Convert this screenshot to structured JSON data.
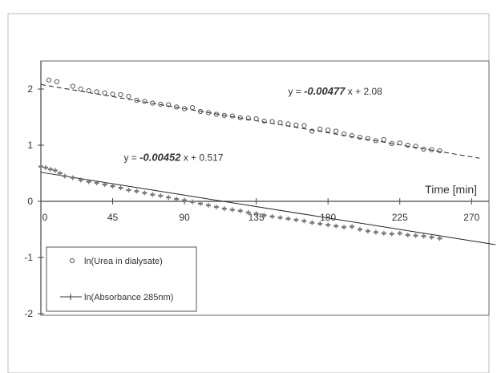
{
  "chart_data": {
    "type": "scatter",
    "xlabel": "Time [min]",
    "ylabel": "",
    "xlim": [
      0,
      280
    ],
    "ylim": [
      -2,
      2.5
    ],
    "x_ticks": [
      0,
      45,
      90,
      135,
      180,
      225,
      270
    ],
    "x_tick_labels": [
      "0",
      "45",
      "90",
      "135",
      "180",
      "225",
      "270"
    ],
    "y_ticks": [
      -2,
      -1,
      0,
      1,
      2
    ],
    "y_tick_labels": [
      "-2",
      "-1",
      "0",
      "1",
      "2"
    ],
    "grid": false,
    "legend_position": "bottom-left",
    "series": [
      {
        "name": "ln(Urea in dialysate)",
        "marker": "circle",
        "x": [
          5,
          10,
          20,
          25,
          30,
          35,
          40,
          45,
          50,
          55,
          60,
          65,
          70,
          75,
          80,
          85,
          90,
          95,
          100,
          105,
          110,
          115,
          120,
          125,
          130,
          135,
          140,
          145,
          150,
          155,
          160,
          165,
          170,
          175,
          180,
          185,
          190,
          195,
          200,
          205,
          210,
          215,
          220,
          225,
          230,
          235,
          240,
          245,
          250
        ],
        "y": [
          2.16,
          2.13,
          2.05,
          2.0,
          1.97,
          1.95,
          1.93,
          1.91,
          1.9,
          1.87,
          1.8,
          1.78,
          1.75,
          1.73,
          1.72,
          1.68,
          1.65,
          1.67,
          1.6,
          1.58,
          1.55,
          1.53,
          1.52,
          1.49,
          1.48,
          1.47,
          1.43,
          1.42,
          1.4,
          1.38,
          1.36,
          1.35,
          1.25,
          1.29,
          1.27,
          1.25,
          1.2,
          1.17,
          1.14,
          1.12,
          1.08,
          1.1,
          1.03,
          1.04,
          1.0,
          0.98,
          0.93,
          0.92,
          0.9
        ],
        "fit": {
          "slope": -0.00477,
          "intercept": 2.08,
          "x_range": [
            0,
            275
          ]
        }
      },
      {
        "name": "ln(Absorbance 285nm)",
        "marker": "plus",
        "x": [
          0,
          3,
          6,
          9,
          12,
          15,
          20,
          25,
          30,
          35,
          40,
          45,
          50,
          55,
          60,
          65,
          70,
          75,
          80,
          85,
          90,
          95,
          100,
          105,
          110,
          115,
          120,
          125,
          130,
          135,
          140,
          145,
          150,
          155,
          160,
          165,
          170,
          175,
          180,
          185,
          190,
          195,
          200,
          205,
          210,
          215,
          220,
          225,
          230,
          235,
          240,
          245,
          250
        ],
        "y": [
          0.62,
          0.6,
          0.57,
          0.55,
          0.5,
          0.45,
          0.42,
          0.38,
          0.35,
          0.33,
          0.3,
          0.27,
          0.24,
          0.2,
          0.18,
          0.15,
          0.12,
          0.1,
          0.07,
          0.04,
          0.02,
          -0.01,
          -0.04,
          -0.07,
          -0.1,
          -0.13,
          -0.15,
          -0.17,
          -0.2,
          -0.22,
          -0.25,
          -0.27,
          -0.29,
          -0.31,
          -0.33,
          -0.35,
          -0.38,
          -0.4,
          -0.42,
          -0.44,
          -0.46,
          -0.45,
          -0.5,
          -0.53,
          -0.55,
          -0.57,
          -0.58,
          -0.57,
          -0.6,
          -0.61,
          -0.62,
          -0.64,
          -0.66
        ],
        "fit": {
          "slope": -0.00452,
          "intercept": 0.517,
          "x_range": [
            0,
            285
          ]
        }
      }
    ],
    "annotations": [
      {
        "id": "eq-urea",
        "prefix": "y = ",
        "coef": "-0.00477",
        "suffix": " x + 2.08",
        "x": 155,
        "y": 1.9
      },
      {
        "id": "eq-abs",
        "prefix": "y = ",
        "coef": "-0.00452",
        "suffix": " x + 0.517",
        "x": 52,
        "y": 0.72
      }
    ],
    "colors": {
      "axis": "#444444",
      "marker": "#555555",
      "fit": "#222222",
      "marker_dense": "#777777"
    }
  }
}
